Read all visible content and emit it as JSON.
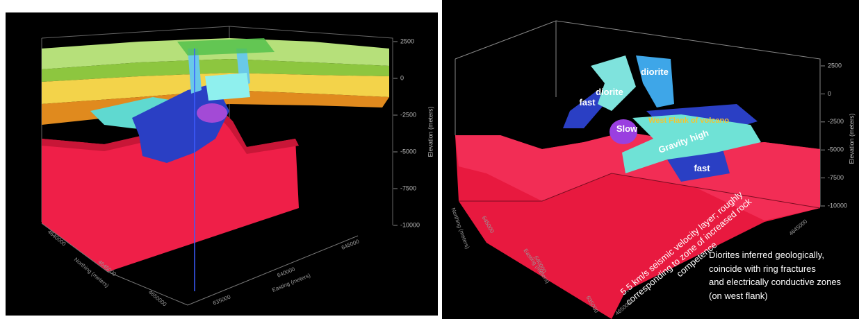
{
  "left_panel": {
    "elevation_ticks": [
      "2500",
      "0",
      "-2500",
      "-5000",
      "-7500",
      "-10000"
    ],
    "elevation_label": "Elevation (meters)",
    "easting_label": "Easting (meters)",
    "northing_label": "Northing (meters)",
    "easting_ticks": [
      "635000",
      "640000",
      "645000"
    ],
    "northing_ticks": [
      "4650000",
      "4645000",
      "4640000"
    ]
  },
  "right_panel": {
    "elevation_ticks": [
      "2500",
      "0",
      "-2500",
      "-5000",
      "-7500",
      "-10000"
    ],
    "elevation_label": "Elevation (meters)",
    "easting_label": "Easting (meters)",
    "northing_label": "Northing (meters)",
    "easting_ticks": [
      "635000",
      "640000",
      "645000"
    ],
    "northing_ticks": [
      "4650000",
      "4645000"
    ],
    "annotations": [
      "diorite",
      "diorite",
      "fast",
      "Slow",
      "West Flank of volcano",
      "Gravity high",
      "fast"
    ],
    "velocity_note": [
      "5.5 km/s seismic velocity layer; roughly",
      "corresponding to zone of increased rock",
      "competence"
    ],
    "diorite_note": [
      "Diorites inferred geologically,",
      "coincide with ring fractures",
      "and electrically conductive zones",
      "(on west flank)"
    ]
  }
}
